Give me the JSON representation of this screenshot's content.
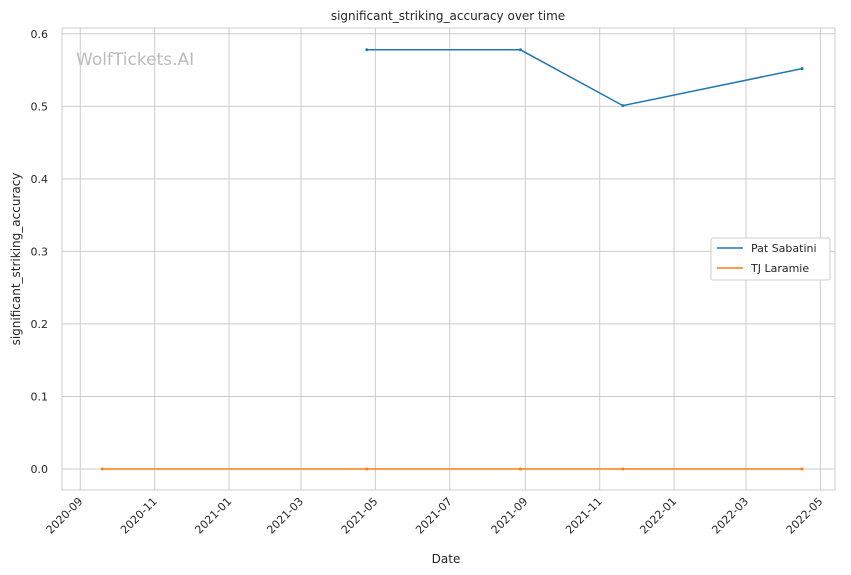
{
  "watermark": "WolfTickets.AI",
  "chart_data": {
    "type": "line",
    "title": "significant_striking_accuracy over time",
    "xlabel": "Date",
    "ylabel": "significant_striking_accuracy",
    "x_ticks": [
      "2020-09",
      "2020-11",
      "2021-01",
      "2021-03",
      "2021-05",
      "2021-07",
      "2021-09",
      "2021-11",
      "2022-01",
      "2022-03",
      "2022-05"
    ],
    "y_ticks": [
      "0.0",
      "0.1",
      "0.2",
      "0.3",
      "0.4",
      "0.5",
      "0.6"
    ],
    "xlim": [
      "2020-08-17",
      "2022-05-13"
    ],
    "ylim": [
      -0.029,
      0.608
    ],
    "grid": true,
    "legend_position": "center-right",
    "series": [
      {
        "name": "Pat Sabatini",
        "color": "#1f77b4",
        "points": [
          {
            "x": "2021-04-24",
            "y": 0.578
          },
          {
            "x": "2021-08-28",
            "y": 0.578
          },
          {
            "x": "2021-11-20",
            "y": 0.501
          },
          {
            "x": "2022-04-16",
            "y": 0.552
          }
        ]
      },
      {
        "name": "TJ Laramie",
        "color": "#ff7f0e",
        "points": [
          {
            "x": "2020-09-19",
            "y": 0.0
          },
          {
            "x": "2021-04-24",
            "y": 0.0
          },
          {
            "x": "2021-08-28",
            "y": 0.0
          },
          {
            "x": "2021-11-20",
            "y": 0.0
          },
          {
            "x": "2022-04-16",
            "y": 0.0
          }
        ]
      }
    ]
  }
}
